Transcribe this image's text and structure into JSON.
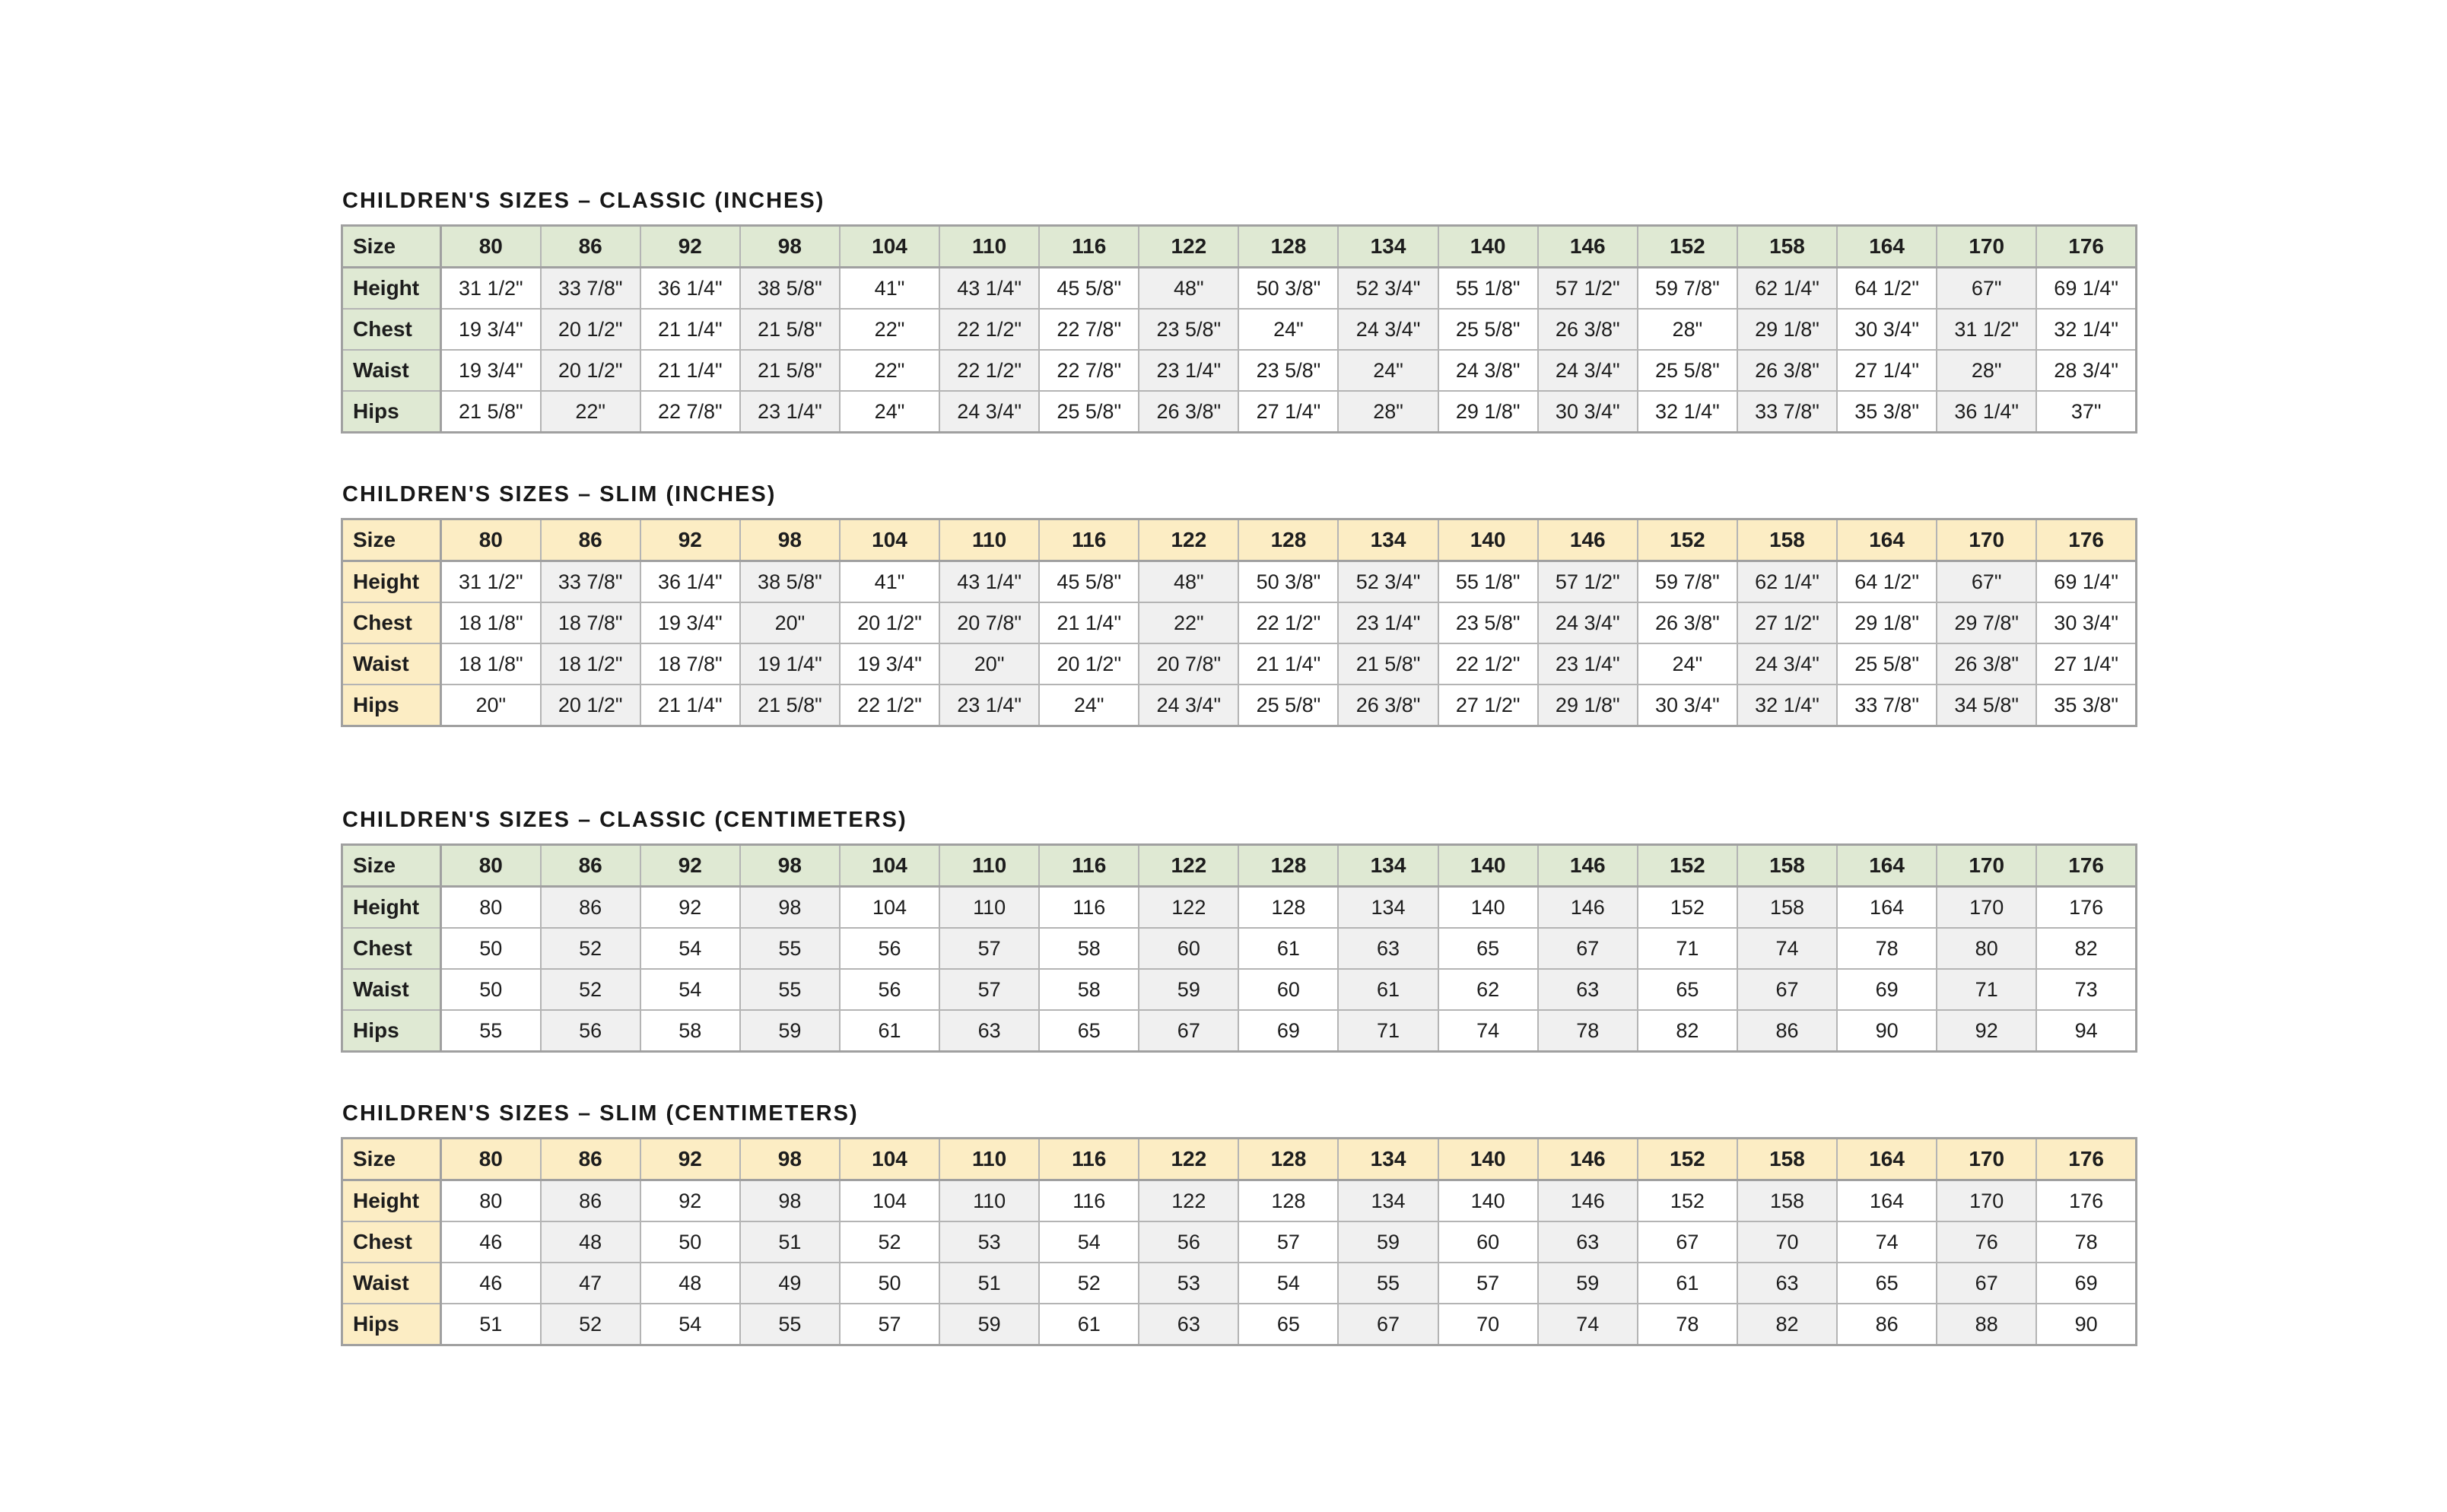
{
  "colors": {
    "green_header": "#dfe9d3",
    "yellow_header": "#fcedc4",
    "alt_column": "#f0f0f0",
    "border_strong": "#a0a0a0",
    "border_line": "#b4b4b4",
    "text": "#1d1d1d",
    "page_bg": "#ffffff"
  },
  "tables": [
    {
      "title": "CHILDREN'S SIZES – CLASSIC (INCHES)",
      "theme": "green",
      "corner_label": "Size",
      "sizes": [
        "80",
        "86",
        "92",
        "98",
        "104",
        "110",
        "116",
        "122",
        "128",
        "134",
        "140",
        "146",
        "152",
        "158",
        "164",
        "170",
        "176"
      ],
      "rows": [
        {
          "label": "Height",
          "values": [
            "31 1/2\"",
            "33 7/8\"",
            "36 1/4\"",
            "38 5/8\"",
            "41\"",
            "43 1/4\"",
            "45 5/8\"",
            "48\"",
            "50 3/8\"",
            "52 3/4\"",
            "55 1/8\"",
            "57 1/2\"",
            "59 7/8\"",
            "62 1/4\"",
            "64 1/2\"",
            "67\"",
            "69 1/4\""
          ]
        },
        {
          "label": "Chest",
          "values": [
            "19 3/4\"",
            "20 1/2\"",
            "21 1/4\"",
            "21 5/8\"",
            "22\"",
            "22 1/2\"",
            "22 7/8\"",
            "23 5/8\"",
            "24\"",
            "24 3/4\"",
            "25 5/8\"",
            "26 3/8\"",
            "28\"",
            "29 1/8\"",
            "30 3/4\"",
            "31 1/2\"",
            "32 1/4\""
          ]
        },
        {
          "label": "Waist",
          "values": [
            "19 3/4\"",
            "20 1/2\"",
            "21 1/4\"",
            "21 5/8\"",
            "22\"",
            "22 1/2\"",
            "22 7/8\"",
            "23 1/4\"",
            "23 5/8\"",
            "24\"",
            "24 3/8\"",
            "24 3/4\"",
            "25 5/8\"",
            "26 3/8\"",
            "27 1/4\"",
            "28\"",
            "28 3/4\""
          ]
        },
        {
          "label": "Hips",
          "values": [
            "21 5/8\"",
            "22\"",
            "22 7/8\"",
            "23 1/4\"",
            "24\"",
            "24 3/4\"",
            "25 5/8\"",
            "26 3/8\"",
            "27 1/4\"",
            "28\"",
            "29 1/8\"",
            "30 3/4\"",
            "32 1/4\"",
            "33 7/8\"",
            "35 3/8\"",
            "36 1/4\"",
            "37\""
          ]
        }
      ]
    },
    {
      "title": "CHILDREN'S SIZES – SLIM (INCHES)",
      "theme": "yellow",
      "corner_label": "Size",
      "sizes": [
        "80",
        "86",
        "92",
        "98",
        "104",
        "110",
        "116",
        "122",
        "128",
        "134",
        "140",
        "146",
        "152",
        "158",
        "164",
        "170",
        "176"
      ],
      "rows": [
        {
          "label": "Height",
          "values": [
            "31 1/2\"",
            "33 7/8\"",
            "36 1/4\"",
            "38 5/8\"",
            "41\"",
            "43 1/4\"",
            "45 5/8\"",
            "48\"",
            "50 3/8\"",
            "52 3/4\"",
            "55 1/8\"",
            "57 1/2\"",
            "59 7/8\"",
            "62 1/4\"",
            "64 1/2\"",
            "67\"",
            "69 1/4\""
          ]
        },
        {
          "label": "Chest",
          "values": [
            "18 1/8\"",
            "18 7/8\"",
            "19 3/4\"",
            "20\"",
            "20 1/2\"",
            "20 7/8\"",
            "21 1/4\"",
            "22\"",
            "22 1/2\"",
            "23 1/4\"",
            "23 5/8\"",
            "24 3/4\"",
            "26 3/8\"",
            "27 1/2\"",
            "29 1/8\"",
            "29 7/8\"",
            "30 3/4\""
          ]
        },
        {
          "label": "Waist",
          "values": [
            "18 1/8\"",
            "18 1/2\"",
            "18 7/8\"",
            "19 1/4\"",
            "19 3/4\"",
            "20\"",
            "20 1/2\"",
            "20 7/8\"",
            "21 1/4\"",
            "21 5/8\"",
            "22 1/2\"",
            "23 1/4\"",
            "24\"",
            "24 3/4\"",
            "25 5/8\"",
            "26 3/8\"",
            "27 1/4\""
          ]
        },
        {
          "label": "Hips",
          "values": [
            "20\"",
            "20 1/2\"",
            "21 1/4\"",
            "21 5/8\"",
            "22 1/2\"",
            "23 1/4\"",
            "24\"",
            "24 3/4\"",
            "25 5/8\"",
            "26 3/8\"",
            "27 1/2\"",
            "29 1/8\"",
            "30 3/4\"",
            "32 1/4\"",
            "33 7/8\"",
            "34 5/8\"",
            "35 3/8\""
          ]
        }
      ]
    },
    {
      "title": "CHILDREN'S SIZES – CLASSIC (CENTIMETERS)",
      "theme": "green",
      "corner_label": "Size",
      "sizes": [
        "80",
        "86",
        "92",
        "98",
        "104",
        "110",
        "116",
        "122",
        "128",
        "134",
        "140",
        "146",
        "152",
        "158",
        "164",
        "170",
        "176"
      ],
      "rows": [
        {
          "label": "Height",
          "values": [
            "80",
            "86",
            "92",
            "98",
            "104",
            "110",
            "116",
            "122",
            "128",
            "134",
            "140",
            "146",
            "152",
            "158",
            "164",
            "170",
            "176"
          ]
        },
        {
          "label": "Chest",
          "values": [
            "50",
            "52",
            "54",
            "55",
            "56",
            "57",
            "58",
            "60",
            "61",
            "63",
            "65",
            "67",
            "71",
            "74",
            "78",
            "80",
            "82"
          ]
        },
        {
          "label": "Waist",
          "values": [
            "50",
            "52",
            "54",
            "55",
            "56",
            "57",
            "58",
            "59",
            "60",
            "61",
            "62",
            "63",
            "65",
            "67",
            "69",
            "71",
            "73"
          ]
        },
        {
          "label": "Hips",
          "values": [
            "55",
            "56",
            "58",
            "59",
            "61",
            "63",
            "65",
            "67",
            "69",
            "71",
            "74",
            "78",
            "82",
            "86",
            "90",
            "92",
            "94"
          ]
        }
      ]
    },
    {
      "title": "CHILDREN'S SIZES – SLIM (CENTIMETERS)",
      "theme": "yellow",
      "corner_label": "Size",
      "sizes": [
        "80",
        "86",
        "92",
        "98",
        "104",
        "110",
        "116",
        "122",
        "128",
        "134",
        "140",
        "146",
        "152",
        "158",
        "164",
        "170",
        "176"
      ],
      "rows": [
        {
          "label": "Height",
          "values": [
            "80",
            "86",
            "92",
            "98",
            "104",
            "110",
            "116",
            "122",
            "128",
            "134",
            "140",
            "146",
            "152",
            "158",
            "164",
            "170",
            "176"
          ]
        },
        {
          "label": "Chest",
          "values": [
            "46",
            "48",
            "50",
            "51",
            "52",
            "53",
            "54",
            "56",
            "57",
            "59",
            "60",
            "63",
            "67",
            "70",
            "74",
            "76",
            "78"
          ]
        },
        {
          "label": "Waist",
          "values": [
            "46",
            "47",
            "48",
            "49",
            "50",
            "51",
            "52",
            "53",
            "54",
            "55",
            "57",
            "59",
            "61",
            "63",
            "65",
            "67",
            "69"
          ]
        },
        {
          "label": "Hips",
          "values": [
            "51",
            "52",
            "54",
            "55",
            "57",
            "59",
            "61",
            "63",
            "65",
            "67",
            "70",
            "74",
            "78",
            "82",
            "86",
            "88",
            "90"
          ]
        }
      ]
    }
  ]
}
